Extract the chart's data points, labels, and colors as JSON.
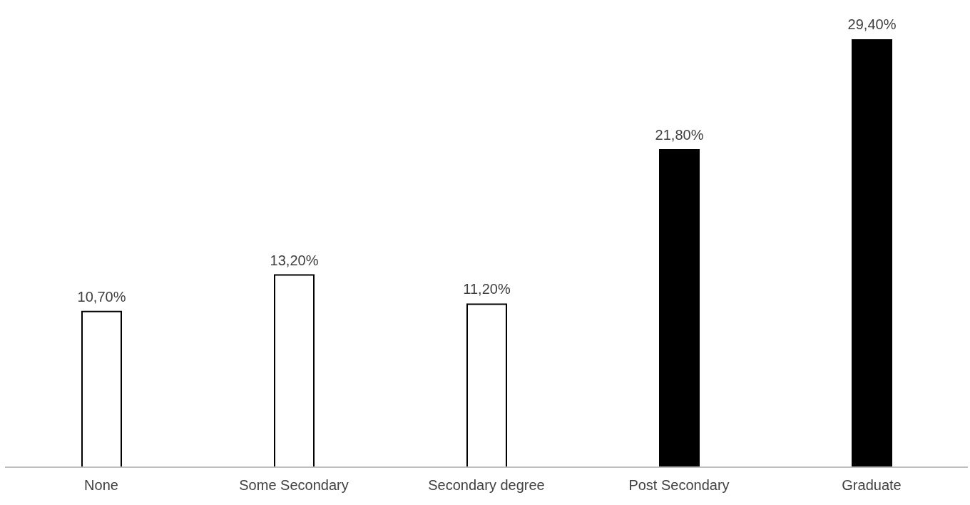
{
  "chart_data": {
    "type": "bar",
    "categories": [
      "None",
      "Some Secondary",
      "Secondary degree",
      "Post Secondary",
      "Graduate"
    ],
    "values": [
      10.7,
      13.2,
      11.2,
      21.8,
      29.4
    ],
    "value_labels": [
      "10,70%",
      "13,20%",
      "11,20%",
      "21,80%",
      "29,40%"
    ],
    "colors": [
      "#ffffff",
      "#ffffff",
      "#ffffff",
      "#000000",
      "#000000"
    ]
  }
}
